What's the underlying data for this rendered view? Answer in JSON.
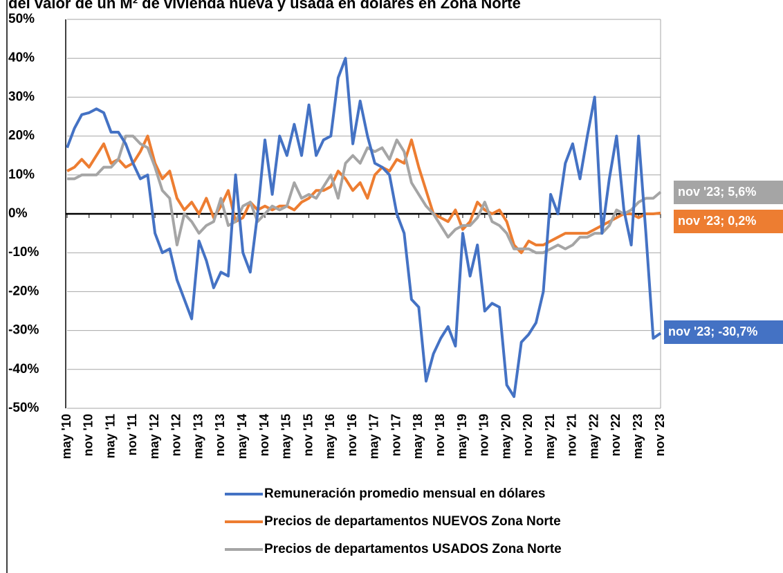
{
  "chart_data": {
    "type": "line",
    "title": "del valor de un M² de vivienda nueva y usada en dólares en Zona Norte",
    "categories": [
      "may '10",
      null,
      null,
      "nov '10",
      null,
      null,
      "may '11",
      null,
      null,
      "nov '11",
      null,
      null,
      "may '12",
      null,
      null,
      "nov '12",
      null,
      null,
      "may '13",
      null,
      null,
      "nov '13",
      null,
      null,
      "may '14",
      null,
      null,
      "nov '14",
      null,
      null,
      "may '15",
      null,
      null,
      "nov '15",
      null,
      null,
      "may '16",
      null,
      null,
      "nov '16",
      null,
      null,
      "may '17",
      null,
      null,
      "nov '17",
      null,
      null,
      "may '18",
      null,
      null,
      "nov '18",
      null,
      null,
      "may '19",
      null,
      null,
      "nov '19",
      null,
      null,
      "may '20",
      null,
      null,
      "nov '20",
      null,
      null,
      "may '21",
      null,
      null,
      "nov '21",
      null,
      null,
      "may '22",
      null,
      null,
      "nov '22",
      null,
      null,
      "may '23",
      null,
      null,
      "nov '23"
    ],
    "series": [
      {
        "name": "Remuneración promedio mensual en dólares",
        "color": "#4472c4",
        "end_label": "nov '23; -30,7%",
        "values": [
          17,
          22,
          25.5,
          26,
          27,
          26,
          21,
          21,
          18,
          13,
          9,
          10,
          -5,
          -10,
          -9,
          -17,
          -22,
          -27,
          -7,
          -12,
          -19,
          -15,
          -16,
          10,
          -10,
          -15,
          0,
          19,
          5,
          20,
          15,
          23,
          15,
          28,
          15,
          19,
          20,
          35,
          40,
          18,
          29,
          20,
          13,
          12,
          10,
          0,
          -5,
          -22,
          -24,
          -43,
          -36,
          -32,
          -29,
          -34,
          -5,
          -16,
          -8,
          -25,
          -23,
          -24,
          -44,
          -47,
          -33,
          -31,
          -28,
          -20,
          5,
          0,
          13,
          18,
          9,
          20,
          30,
          -5,
          9,
          20,
          1,
          -8,
          20,
          -5,
          -32,
          -30.7
        ]
      },
      {
        "name": "Precios de departamentos NUEVOS Zona Norte",
        "color": "#ed7d31",
        "end_label": "nov '23; 0,2%",
        "values": [
          11,
          12,
          14,
          12,
          15,
          18,
          13,
          14,
          12,
          13,
          16,
          20,
          13,
          9,
          11,
          4,
          1,
          3,
          0,
          4,
          -1,
          2,
          6,
          -2,
          -1,
          3,
          1,
          2,
          1,
          2,
          2,
          1,
          3,
          4,
          6,
          6,
          7,
          11,
          9,
          6,
          8,
          4,
          10,
          12,
          11,
          14,
          13,
          19,
          12,
          6,
          0,
          -1,
          -2,
          1,
          -4,
          -2,
          3,
          1,
          0,
          1,
          -2,
          -8,
          -10,
          -7,
          -8,
          -8,
          -7,
          -6,
          -5,
          -5,
          -5,
          -5,
          -4,
          -3,
          -2,
          -1,
          0,
          0,
          -1,
          0,
          0,
          0.2
        ]
      },
      {
        "name": "Precios de departamentos USADOS Zona Norte",
        "color": "#a5a5a5",
        "end_label": "nov '23; 5,6%",
        "values": [
          9,
          9,
          10,
          10,
          10,
          12,
          12,
          14,
          20,
          20,
          18,
          17,
          12,
          6,
          4,
          -8,
          0,
          -2,
          -5,
          -3,
          -2,
          4,
          -3,
          -2,
          2,
          3,
          -2,
          0,
          2,
          1,
          2,
          8,
          4,
          5,
          4,
          7,
          10,
          4,
          13,
          15,
          13,
          17,
          16,
          17,
          14,
          19,
          16,
          8,
          5,
          2,
          0,
          -3,
          -6,
          -4,
          -3,
          -3,
          -1,
          3,
          -2,
          -3,
          -5,
          -9,
          -9,
          -9,
          -10,
          -10,
          -9,
          -8,
          -9,
          -8,
          -6,
          -6,
          -5,
          -5,
          -3,
          1,
          0,
          1,
          3,
          4,
          4,
          5.6
        ]
      }
    ],
    "ylim": [
      -50,
      50
    ],
    "yticks": [
      {
        "value": -50,
        "label": "-50%"
      },
      {
        "value": -40,
        "label": "-40%"
      },
      {
        "value": -30,
        "label": "-30%"
      },
      {
        "value": -20,
        "label": "-20%"
      },
      {
        "value": -10,
        "label": "-10%"
      },
      {
        "value": 0,
        "label": "0%"
      },
      {
        "value": 10,
        "label": "10%"
      },
      {
        "value": 20,
        "label": "20%"
      },
      {
        "value": 30,
        "label": "30%"
      },
      {
        "value": 40,
        "label": "40%"
      },
      {
        "value": 50,
        "label": "50%"
      }
    ],
    "grid": true
  }
}
